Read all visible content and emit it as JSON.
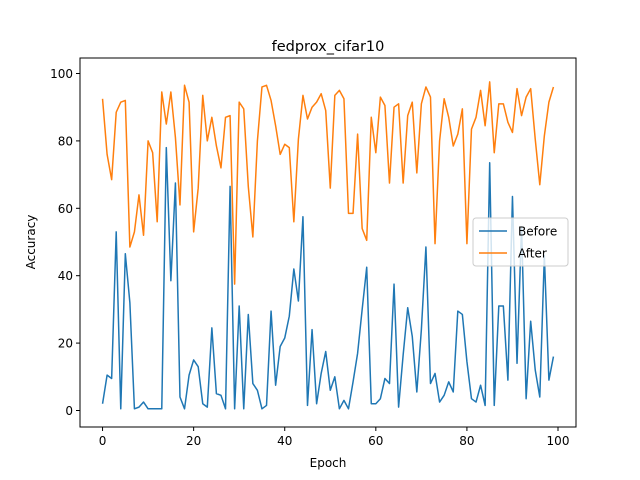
{
  "chart_data": {
    "type": "line",
    "title": "fedprox_cifar10",
    "xlabel": "Epoch",
    "ylabel": "Accuracy",
    "xlim": [
      -4.95,
      103.95
    ],
    "ylim": [
      -4.9,
      104.6
    ],
    "xticks": [
      0,
      20,
      40,
      60,
      80,
      100
    ],
    "yticks": [
      0,
      20,
      40,
      60,
      80,
      100
    ],
    "grid": false,
    "legend_position": "center-right",
    "series": [
      {
        "name": "Before",
        "color": "#1f77b4",
        "values": [
          2,
          10.5,
          9.5,
          53,
          0.5,
          46.5,
          32,
          0.5,
          1,
          2.5,
          0.5,
          0.5,
          0.5,
          0.5,
          78,
          38.5,
          67.5,
          4,
          0.5,
          10.5,
          15,
          13,
          2,
          1,
          24.5,
          5,
          4.5,
          0.5,
          66.5,
          0.5,
          31,
          0.5,
          28.5,
          8,
          6,
          0.5,
          1.5,
          29.5,
          7.5,
          19,
          21.5,
          28,
          42,
          32.5,
          57.5,
          1.5,
          24,
          2,
          11,
          17.5,
          6,
          10,
          0.5,
          3,
          0.5,
          8.5,
          17,
          30,
          42.5,
          2,
          2,
          3.5,
          9.5,
          8,
          37.5,
          1,
          16.5,
          30.5,
          22,
          5.5,
          24,
          48.5,
          8,
          11,
          2.5,
          4.5,
          8.5,
          5.5,
          29.5,
          28.5,
          14.5,
          3.5,
          2.5,
          7.5,
          1.5,
          73.5,
          1.5,
          31,
          31,
          9,
          63.5,
          14,
          54.5,
          3.5,
          26.5,
          12,
          4,
          46,
          9,
          16
        ]
      },
      {
        "name": "After",
        "color": "#ff7f0e",
        "values": [
          92.5,
          76,
          68.5,
          88.5,
          91.5,
          92,
          48.5,
          53,
          64,
          52,
          80,
          76.5,
          56,
          94.5,
          85,
          94.5,
          81,
          61,
          96.5,
          91.5,
          53,
          66,
          93.5,
          80,
          87,
          78.5,
          72,
          87,
          87.5,
          37.5,
          91.5,
          89.5,
          66.5,
          51.5,
          80,
          96,
          96.5,
          92,
          84.5,
          76,
          79,
          78,
          56,
          80.5,
          93.5,
          86.5,
          90,
          91.5,
          94,
          89,
          66,
          93.5,
          95,
          92.5,
          58.5,
          58.5,
          82,
          54,
          50.5,
          87,
          76.5,
          93,
          90.5,
          67.5,
          90,
          91,
          67.5,
          87.5,
          91.5,
          70.5,
          91,
          96,
          93,
          49.5,
          80,
          92.5,
          87,
          78.5,
          82,
          89.5,
          49.5,
          83.5,
          87,
          95,
          84.5,
          97.5,
          76.5,
          91,
          91,
          85.5,
          82.5,
          95.5,
          87.5,
          93,
          95.5,
          80.5,
          67,
          81.5,
          91.5,
          96
        ]
      }
    ]
  }
}
